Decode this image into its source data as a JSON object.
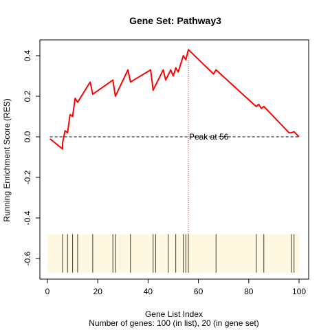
{
  "chart_data": {
    "type": "line",
    "title": "Gene Set:  Pathway3",
    "xlabel": "Gene List Index",
    "ylabel": "Running Enrichment Score (RES)",
    "subtitle": "Number of genes: 100 (in list), 20 (in gene set)",
    "xlim": [
      0,
      100
    ],
    "ylim": [
      -0.7,
      0.45
    ],
    "x_ticks": [
      0,
      20,
      40,
      60,
      80,
      100
    ],
    "y_ticks": [
      -0.6,
      -0.4,
      -0.2,
      0.0,
      0.2,
      0.4
    ],
    "grid": false,
    "legend": "none",
    "series": [
      {
        "color": "#ff0000",
        "x": [
          1,
          6,
          6,
          7,
          8,
          9,
          10,
          11,
          12,
          17,
          18,
          26,
          27,
          32,
          33,
          41,
          42,
          46,
          47,
          49,
          50,
          51,
          52,
          54,
          55,
          56,
          66,
          67,
          82,
          83,
          84,
          85,
          86,
          96,
          97,
          98,
          100
        ],
        "y": [
          -0.01,
          -0.06,
          -0.03,
          0.03,
          0.02,
          0.11,
          0.1,
          0.19,
          0.17,
          0.27,
          0.21,
          0.28,
          0.2,
          0.33,
          0.27,
          0.33,
          0.23,
          0.33,
          0.28,
          0.33,
          0.3,
          0.34,
          0.32,
          0.4,
          0.38,
          0.43,
          0.31,
          0.33,
          0.16,
          0.15,
          0.16,
          0.14,
          0.15,
          0.02,
          0.02,
          0.025,
          0.0
        ]
      }
    ],
    "baseline": {
      "y": 0.0,
      "style": "dashed"
    },
    "peak": {
      "x": 56,
      "y": 0.43,
      "label": "Peak at 56"
    },
    "gene_set_hits": [
      6,
      8,
      10,
      12,
      18,
      26,
      27,
      33,
      42,
      43,
      48,
      51,
      54,
      55,
      56,
      67,
      83,
      86,
      97,
      98
    ],
    "hits_band": {
      "ymin": -0.67,
      "ymax": -0.48,
      "color": "#fff8e1"
    },
    "colors": {
      "line": "#ff0000",
      "peak_line": "#ff0000",
      "hits": "#3a3a2a"
    }
  }
}
